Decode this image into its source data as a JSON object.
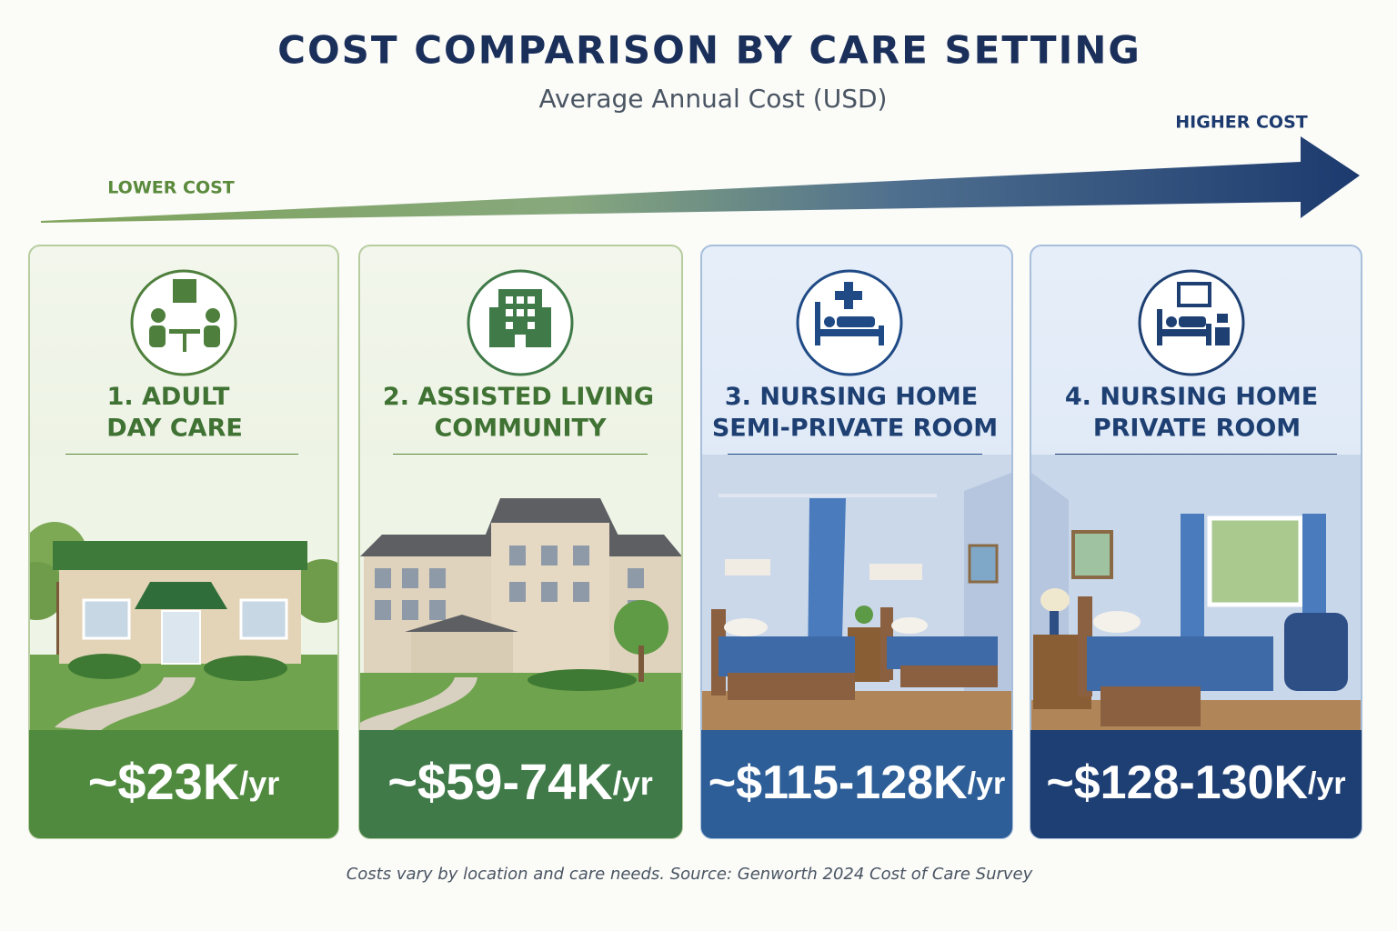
{
  "header": {
    "title": "COST COMPARISON BY CARE SETTING",
    "subtitle": "Average Annual Cost (USD)"
  },
  "scale": {
    "low": "LOWER COST",
    "high": "HIGHER COST"
  },
  "cards": [
    {
      "number": "1.",
      "title": [
        "ADULT",
        "DAY CARE"
      ],
      "price": "~$23K",
      "unit": "/yr"
    },
    {
      "number": "2.",
      "title": [
        "ASSISTED LIVING",
        "COMMUNITY"
      ],
      "price": "~$59-74K",
      "unit": "/yr"
    },
    {
      "number": "3.",
      "title": [
        "NURSING HOME",
        "SEMI-PRIVATE ROOM"
      ],
      "price": "~$115-128K",
      "unit": "/yr"
    },
    {
      "number": "4.",
      "title": [
        "NURSING HOME",
        "PRIVATE ROOM"
      ],
      "price": "~$128-130K",
      "unit": "/yr"
    }
  ],
  "footnote": "Costs vary by location and care needs. Source: Genworth 2024 Cost of Care Survey"
}
